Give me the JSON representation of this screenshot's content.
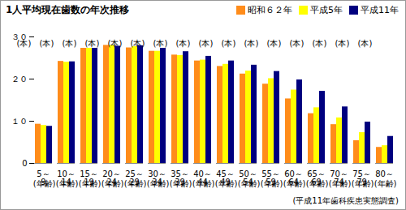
{
  "chart_data": {
    "type": "bar",
    "title": "1人平均現在歯数の年次推移",
    "categories": [
      "5～9",
      "10～14",
      "15～19",
      "20～24",
      "25～29",
      "30～34",
      "35～39",
      "40～44",
      "45～49",
      "50～54",
      "55～59",
      "60～64",
      "65～69",
      "70～74",
      "75～79",
      "80～"
    ],
    "series": [
      {
        "name": "昭和６２年",
        "color": "#ff8c1a",
        "values": [
          9.3,
          24.2,
          27.3,
          28.0,
          27.4,
          26.6,
          25.7,
          24.3,
          23.0,
          21.2,
          18.8,
          15.3,
          11.8,
          9.2,
          5.4,
          3.8
        ]
      },
      {
        "name": "平成5年",
        "color": "#ffff00",
        "values": [
          9.0,
          24.0,
          27.3,
          28.0,
          27.7,
          26.6,
          25.6,
          24.5,
          23.5,
          21.9,
          20.1,
          17.4,
          13.2,
          10.8,
          7.3,
          4.2
        ]
      },
      {
        "name": "平成11年",
        "color": "#00007f",
        "values": [
          8.8,
          24.1,
          27.3,
          27.8,
          27.9,
          27.3,
          26.5,
          25.4,
          24.3,
          23.3,
          21.8,
          19.8,
          17.1,
          13.4,
          9.8,
          6.4
        ]
      }
    ],
    "ylim": [
      0,
      30
    ],
    "yticks": [
      0,
      {
        "value": 10,
        "label": "１０"
      },
      {
        "value": 20,
        "label": "２０"
      },
      {
        "value": 30,
        "label": "３０"
      }
    ],
    "ylabel": "(本)",
    "xlabel": "(年齢)",
    "caption": "(平成11年歯科疾患実態調査)",
    "legend": "top-right",
    "grid": false
  }
}
